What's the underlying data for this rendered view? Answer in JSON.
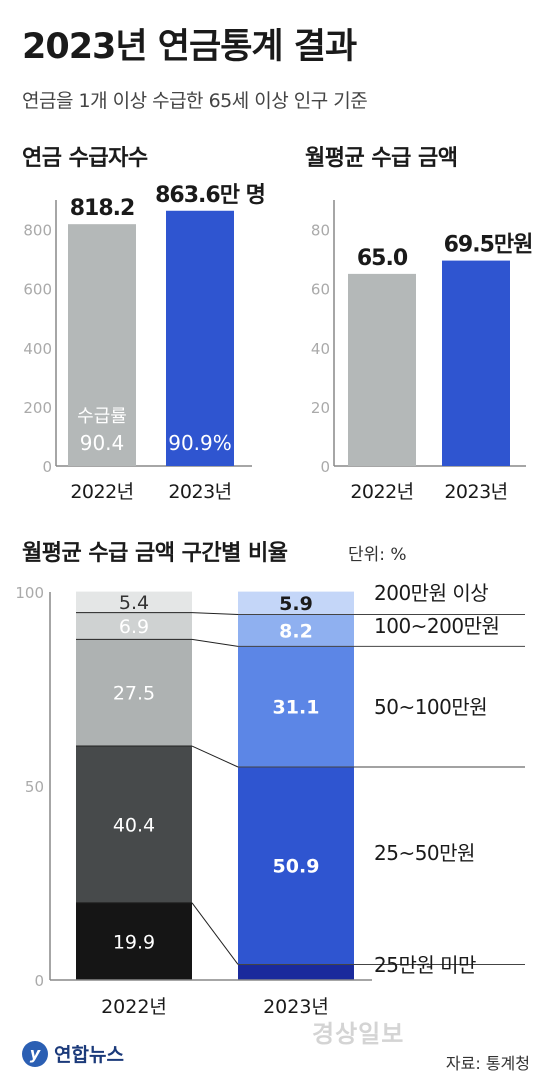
{
  "header": {
    "title": "2023년 연금통계 결과",
    "subtitle": "연금을 1개 이상 수급한 65세 이상 인구 기준"
  },
  "colors": {
    "gray_bar": "#b4b8b8",
    "blue_bar": "#2f55d0",
    "axis": "#888888",
    "tick": "#aaaaaa"
  },
  "chart_data": [
    {
      "type": "bar",
      "title": "연금 수급자수",
      "categories": [
        "2022년",
        "2023년"
      ],
      "values": [
        818.2,
        863.6
      ],
      "value_labels": [
        "818.2",
        "863.6만 명"
      ],
      "rate_label": "수급률",
      "rates": [
        "90.4",
        "90.9%"
      ],
      "yticks": [
        "0",
        "200",
        "400",
        "600",
        "800"
      ],
      "ylim": [
        0,
        900
      ]
    },
    {
      "type": "bar",
      "title": "월평균 수급 금액",
      "categories": [
        "2022년",
        "2023년"
      ],
      "values": [
        65.0,
        69.5
      ],
      "value_labels": [
        "65.0",
        "69.5만원"
      ],
      "yticks": [
        "0",
        "20",
        "40",
        "60",
        "80"
      ],
      "ylim": [
        0,
        90
      ]
    },
    {
      "type": "bar",
      "stacked": true,
      "title": "월평균 수급 금액 구간별 비율",
      "unit": "단위: %",
      "categories": [
        "2022년",
        "2023년"
      ],
      "yticks": [
        "0",
        "50",
        "100"
      ],
      "ylim": [
        0,
        100
      ],
      "series": [
        {
          "name": "25만원 미만",
          "values": [
            19.9,
            4.0
          ],
          "colors": [
            "#151515",
            "#1a2a9c"
          ],
          "text_colors": [
            "#ffffff",
            "#ffffff"
          ]
        },
        {
          "name": "25~50만원",
          "values": [
            40.4,
            50.9
          ],
          "colors": [
            "#474a4b",
            "#2f55d0"
          ],
          "text_colors": [
            "#ffffff",
            "#ffffff"
          ]
        },
        {
          "name": "50~100만원",
          "values": [
            27.5,
            31.1
          ],
          "colors": [
            "#aeb2b2",
            "#5c86e6"
          ],
          "text_colors": [
            "#ffffff",
            "#ffffff"
          ]
        },
        {
          "name": "100~200만원",
          "values": [
            6.9,
            8.2
          ],
          "colors": [
            "#cfd2d2",
            "#8fb0f0"
          ],
          "text_colors": [
            "#ffffff",
            "#ffffff"
          ]
        },
        {
          "name": "200만원 이상",
          "values": [
            5.4,
            5.9
          ],
          "colors": [
            "#e4e6e6",
            "#c4d6f8"
          ],
          "text_colors": [
            "#333333",
            "#1a1a1a"
          ]
        }
      ]
    }
  ],
  "footer": {
    "logo_mark": "y",
    "logo_text": "연합뉴스",
    "watermark": "경상일보",
    "source": "자료: 통계청"
  }
}
